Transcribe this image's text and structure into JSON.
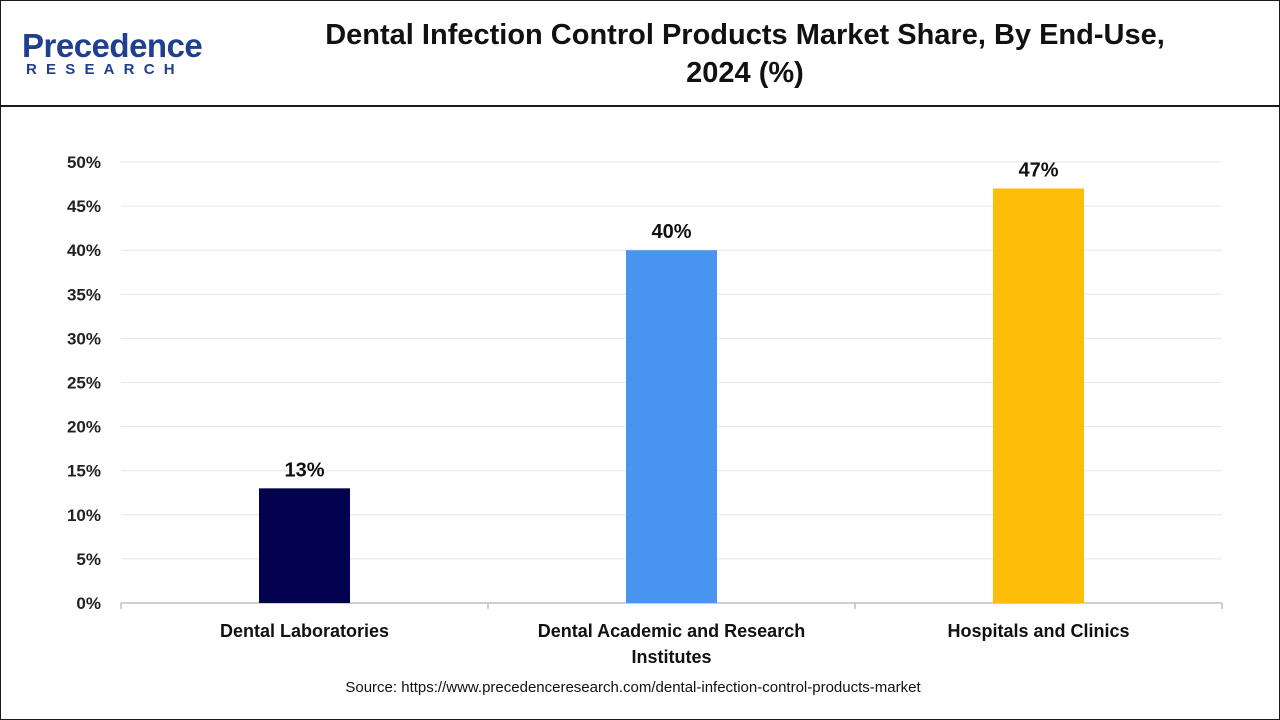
{
  "logo": {
    "main": "Precedence",
    "sub": "RESEARCH"
  },
  "header": {
    "title_line1": "Dental Infection Control Products Market Share, By End-Use,",
    "title_line2": "2024 (%)"
  },
  "colors": {
    "series": [
      "#02024f",
      "#4895ef",
      "#fdbd09"
    ],
    "grid": "#e6e6e6",
    "axis": "#bfbfbf"
  },
  "chart_data": {
    "type": "bar",
    "title": "Dental Infection Control Products Market Share, By End-Use, 2024 (%)",
    "categories": [
      "Dental Laboratories",
      "Dental Academic and Research Institutes",
      "Hospitals and Clinics"
    ],
    "category_lines": [
      [
        "Dental Laboratories"
      ],
      [
        "Dental Academic and Research",
        "Institutes"
      ],
      [
        "Hospitals and Clinics"
      ]
    ],
    "values": [
      13,
      40,
      47
    ],
    "data_labels": [
      "13%",
      "40%",
      "47%"
    ],
    "ylim": [
      0,
      50
    ],
    "yticks": [
      0,
      5,
      10,
      15,
      20,
      25,
      30,
      35,
      40,
      45,
      50
    ],
    "ytick_labels": [
      "0%",
      "5%",
      "10%",
      "15%",
      "20%",
      "25%",
      "30%",
      "35%",
      "40%",
      "45%",
      "50%"
    ],
    "xlabel": "",
    "ylabel": "",
    "grid": true
  },
  "source": "Source: https://www.precedenceresearch.com/dental-infection-control-products-market"
}
